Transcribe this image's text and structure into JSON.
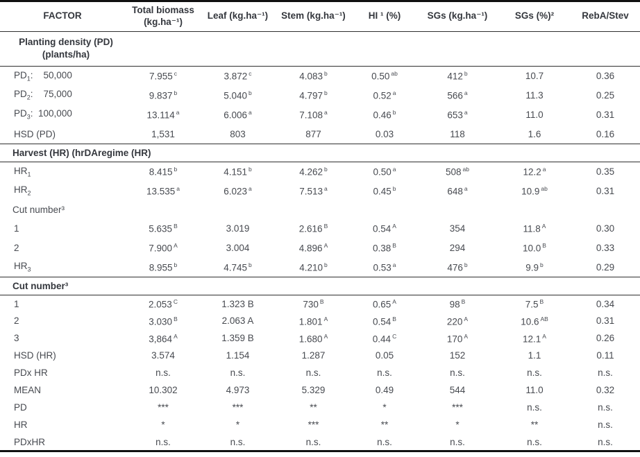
{
  "table": {
    "columns": [
      {
        "lines": [
          "FACTOR"
        ]
      },
      {
        "lines": [
          "Total biomass",
          "(kg.ha⁻¹)"
        ]
      },
      {
        "lines": [
          "Leaf (kg.ha⁻¹)"
        ]
      },
      {
        "lines": [
          "Stem (kg.ha⁻¹)"
        ]
      },
      {
        "lines": [
          "HI ¹ (%)"
        ]
      },
      {
        "lines": [
          "SGs (kg.ha⁻¹)"
        ]
      },
      {
        "lines": [
          "SGs (%)²"
        ]
      },
      {
        "lines": [
          "RebA/Stev"
        ]
      }
    ],
    "rows": [
      {
        "type": "section_center",
        "lines": [
          "Planting density (PD)",
          "(plants/ha)"
        ],
        "rule": true
      },
      {
        "type": "data",
        "label": {
          "base": "PD",
          "sub": "1",
          "rest": ":    50,000"
        },
        "cells": [
          [
            "7.955",
            "c"
          ],
          [
            "3.872",
            "c"
          ],
          [
            "4.083",
            "b"
          ],
          [
            "0.50",
            "ab"
          ],
          [
            "412",
            "b"
          ],
          [
            "10.7",
            ""
          ],
          [
            "0.36",
            ""
          ]
        ]
      },
      {
        "type": "data",
        "label": {
          "base": "PD",
          "sub": "2",
          "rest": ":    75,000"
        },
        "cells": [
          [
            "9.837",
            "b"
          ],
          [
            "5.040",
            "b"
          ],
          [
            "4.797",
            "b"
          ],
          [
            "0.52",
            "a"
          ],
          [
            "566",
            "a"
          ],
          [
            "11.3",
            ""
          ],
          [
            "0.25",
            ""
          ]
        ]
      },
      {
        "type": "data",
        "label": {
          "base": "PD",
          "sub": "3",
          "rest": ":  100,000"
        },
        "cells": [
          [
            "13.114",
            "a"
          ],
          [
            "6.006",
            "a"
          ],
          [
            "7.108",
            "a"
          ],
          [
            "0.46",
            "b"
          ],
          [
            "653",
            "a"
          ],
          [
            "11.0",
            ""
          ],
          [
            "0.31",
            ""
          ]
        ]
      },
      {
        "type": "data",
        "label": {
          "base": "HSD (PD)",
          "sub": "",
          "rest": ""
        },
        "rule": true,
        "cells": [
          [
            "1,531",
            ""
          ],
          [
            "803",
            ""
          ],
          [
            "877",
            ""
          ],
          [
            "0.03",
            ""
          ],
          [
            "118",
            ""
          ],
          [
            "1.6",
            ""
          ],
          [
            "0.16",
            ""
          ]
        ]
      },
      {
        "type": "section_left",
        "text": "Harvest (HR) (hrDAregime (HR)",
        "rule": true
      },
      {
        "type": "data",
        "label": {
          "base": "HR",
          "sub": "1",
          "rest": ""
        },
        "cells": [
          [
            "8.415",
            "b"
          ],
          [
            "4.151",
            "b"
          ],
          [
            "4.262",
            "b"
          ],
          [
            "0.50",
            "a"
          ],
          [
            "508",
            "ab"
          ],
          [
            "12.2",
            "a"
          ],
          [
            "0.35",
            ""
          ]
        ]
      },
      {
        "type": "data",
        "label": {
          "base": "HR",
          "sub": "2",
          "rest": ""
        },
        "cells": [
          [
            "13.535",
            "a"
          ],
          [
            "6.023",
            "a"
          ],
          [
            "7.513",
            "a"
          ],
          [
            "0.45",
            "b"
          ],
          [
            "648",
            "a"
          ],
          [
            "10.9",
            "ab"
          ],
          [
            "0.31",
            ""
          ]
        ]
      },
      {
        "type": "subheader",
        "text": "Cut number³"
      },
      {
        "type": "data",
        "label": {
          "base": "1",
          "sub": "",
          "rest": ""
        },
        "cells": [
          [
            "5.635",
            "B"
          ],
          [
            "3.019",
            ""
          ],
          [
            "2.616",
            "B"
          ],
          [
            "0.54",
            "A"
          ],
          [
            "354",
            ""
          ],
          [
            "11.8",
            "A"
          ],
          [
            "0.30",
            ""
          ]
        ]
      },
      {
        "type": "data",
        "label": {
          "base": "2",
          "sub": "",
          "rest": ""
        },
        "cells": [
          [
            "7.900",
            "A"
          ],
          [
            "3.004",
            ""
          ],
          [
            "4.896",
            "A"
          ],
          [
            "0.38",
            "B"
          ],
          [
            "294",
            ""
          ],
          [
            "10.0",
            "B"
          ],
          [
            "0.33",
            ""
          ]
        ]
      },
      {
        "type": "data",
        "label": {
          "base": "HR",
          "sub": "3",
          "rest": ""
        },
        "rule": true,
        "cells": [
          [
            "8.955",
            "b"
          ],
          [
            "4.745",
            "b"
          ],
          [
            "4.210",
            "b"
          ],
          [
            "0.53",
            "a"
          ],
          [
            "476",
            "b"
          ],
          [
            "9.9",
            "b"
          ],
          [
            "0.29",
            ""
          ]
        ]
      },
      {
        "type": "section_left",
        "text": "Cut number³",
        "rule": true
      },
      {
        "type": "data",
        "label": {
          "base": "1",
          "sub": "",
          "rest": ""
        },
        "cells": [
          [
            "2.053",
            "C"
          ],
          [
            "1.323 B",
            ""
          ],
          [
            "730",
            "B"
          ],
          [
            "0.65",
            "A"
          ],
          [
            "98",
            "B"
          ],
          [
            "7.5",
            "B"
          ],
          [
            "0.34",
            ""
          ]
        ]
      },
      {
        "type": "data",
        "label": {
          "base": "2",
          "sub": "",
          "rest": ""
        },
        "cells": [
          [
            "3.030",
            "B"
          ],
          [
            "2.063 A",
            ""
          ],
          [
            "1.801",
            "A"
          ],
          [
            "0.54",
            "B"
          ],
          [
            "220",
            "A"
          ],
          [
            "10.6",
            "AB"
          ],
          [
            "0.31",
            ""
          ]
        ]
      },
      {
        "type": "data",
        "label": {
          "base": "3",
          "sub": "",
          "rest": ""
        },
        "cells": [
          [
            "3,864",
            "A"
          ],
          [
            "1.359 B",
            ""
          ],
          [
            "1.680",
            "A"
          ],
          [
            "0.44",
            "C"
          ],
          [
            "170",
            "A"
          ],
          [
            "12.1",
            "A"
          ],
          [
            "0.26",
            ""
          ]
        ]
      },
      {
        "type": "data",
        "label": {
          "base": "HSD (HR)",
          "sub": "",
          "rest": ""
        },
        "cells": [
          [
            "3.574",
            ""
          ],
          [
            "1.154",
            ""
          ],
          [
            "1.287",
            ""
          ],
          [
            "0.05",
            ""
          ],
          [
            "152",
            ""
          ],
          [
            "1.1",
            ""
          ],
          [
            "0.11",
            ""
          ]
        ]
      },
      {
        "type": "data",
        "label": {
          "base": "PDx HR",
          "sub": "",
          "rest": ""
        },
        "cells": [
          [
            "n.s.",
            ""
          ],
          [
            "n.s.",
            ""
          ],
          [
            "n.s.",
            ""
          ],
          [
            "n.s.",
            ""
          ],
          [
            "n.s.",
            ""
          ],
          [
            "n.s.",
            ""
          ],
          [
            "n.s.",
            ""
          ]
        ]
      },
      {
        "type": "data",
        "label": {
          "base": "MEAN",
          "sub": "",
          "rest": ""
        },
        "cells": [
          [
            "10.302",
            ""
          ],
          [
            "4.973",
            ""
          ],
          [
            "5.329",
            ""
          ],
          [
            "0.49",
            ""
          ],
          [
            "544",
            ""
          ],
          [
            "11.0",
            ""
          ],
          [
            "0.32",
            ""
          ]
        ]
      },
      {
        "type": "data",
        "label": {
          "base": "PD",
          "sub": "",
          "rest": ""
        },
        "cells": [
          [
            "***",
            ""
          ],
          [
            "***",
            ""
          ],
          [
            "**",
            ""
          ],
          [
            "*",
            ""
          ],
          [
            "***",
            ""
          ],
          [
            "n.s.",
            ""
          ],
          [
            "n.s.",
            ""
          ]
        ]
      },
      {
        "type": "data",
        "label": {
          "base": "HR",
          "sub": "",
          "rest": ""
        },
        "cells": [
          [
            "*",
            ""
          ],
          [
            "*",
            ""
          ],
          [
            "***",
            ""
          ],
          [
            "**",
            ""
          ],
          [
            "*",
            ""
          ],
          [
            "**",
            ""
          ],
          [
            "n.s.",
            ""
          ]
        ]
      },
      {
        "type": "data",
        "label": {
          "base": "PDxHR",
          "sub": "",
          "rest": ""
        },
        "cells": [
          [
            "n.s.",
            ""
          ],
          [
            "n.s.",
            ""
          ],
          [
            "n.s.",
            ""
          ],
          [
            "n.s.",
            ""
          ],
          [
            "n.s.",
            ""
          ],
          [
            "n.s.",
            ""
          ],
          [
            "n.s.",
            ""
          ]
        ]
      }
    ]
  }
}
